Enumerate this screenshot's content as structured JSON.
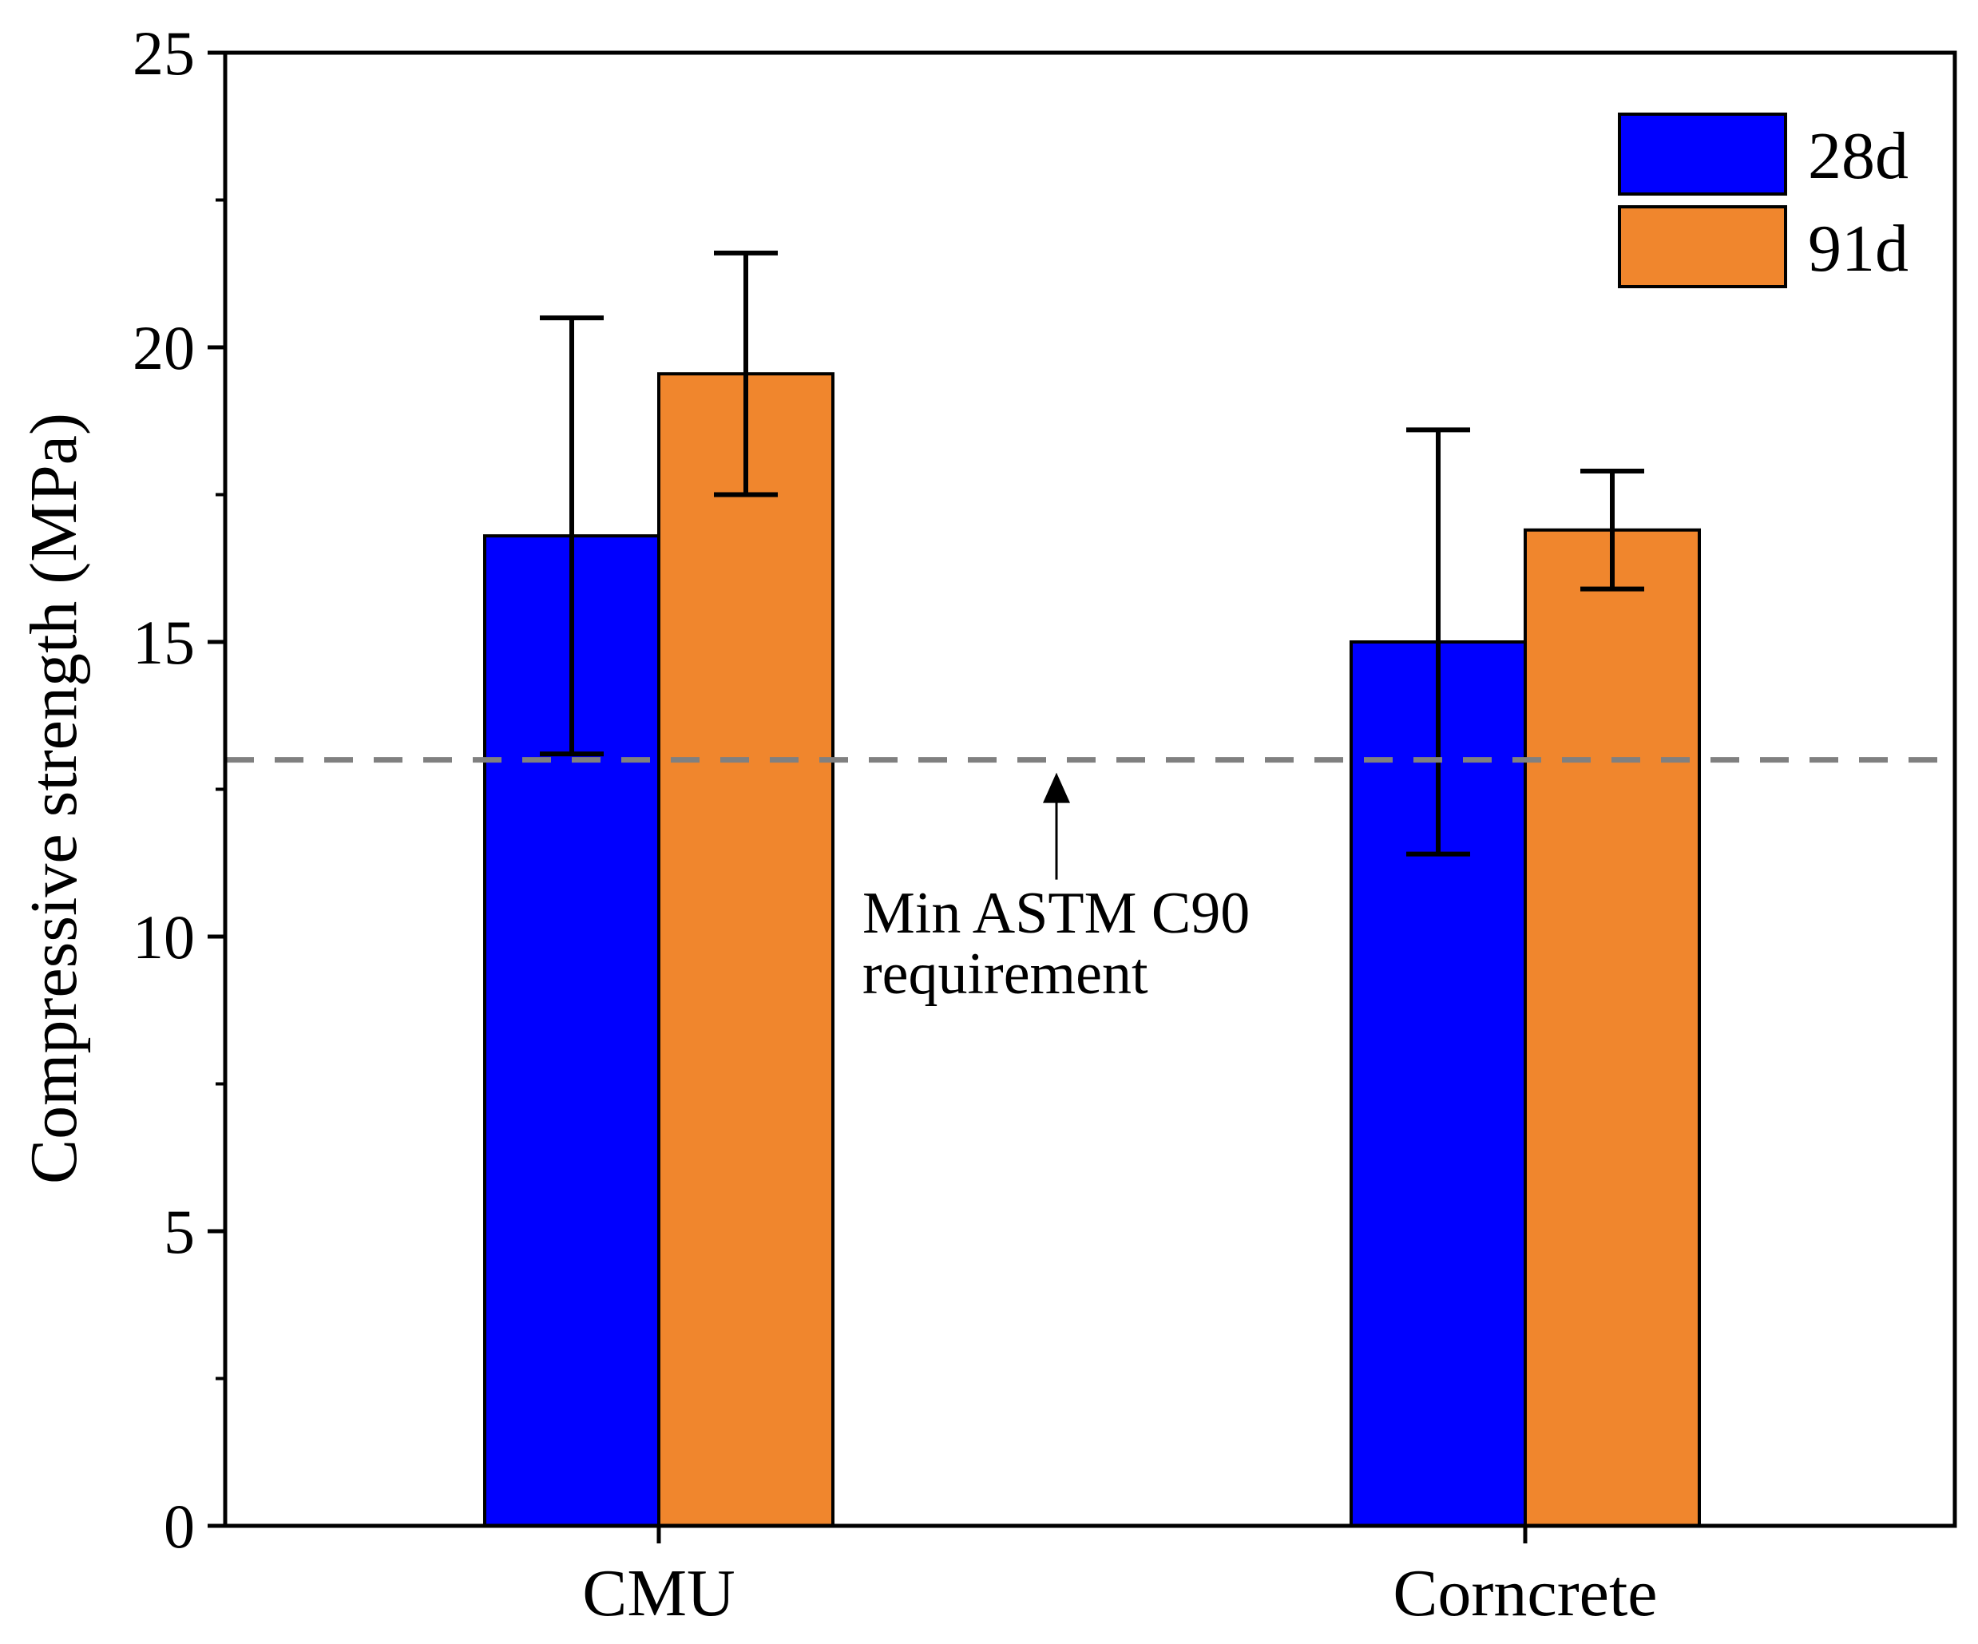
{
  "chart_data": {
    "type": "bar",
    "categories": [
      "CMU",
      "Corncrete"
    ],
    "series": [
      {
        "name": "28d",
        "color": "#0000FF",
        "values": [
          16.8,
          15.0
        ],
        "error_low": [
          13.1,
          11.4
        ],
        "error_high": [
          20.5,
          18.6
        ]
      },
      {
        "name": "91d",
        "color": "#F0862D",
        "values": [
          19.55,
          16.9
        ],
        "error_low": [
          17.5,
          15.9
        ],
        "error_high": [
          21.6,
          17.9
        ]
      }
    ],
    "ylabel": "Compressive strength (MPa)",
    "xlabel": "",
    "ylim": [
      0,
      25
    ],
    "yticks": [
      0,
      5,
      10,
      15,
      20,
      25
    ],
    "y_minor_step": 2.5,
    "legend_position": "top-right",
    "grid": false,
    "reference_line": {
      "value": 13,
      "style": "dashed",
      "color": "#808080",
      "annotation": [
        "Min ASTM C90",
        "requirement"
      ]
    }
  }
}
